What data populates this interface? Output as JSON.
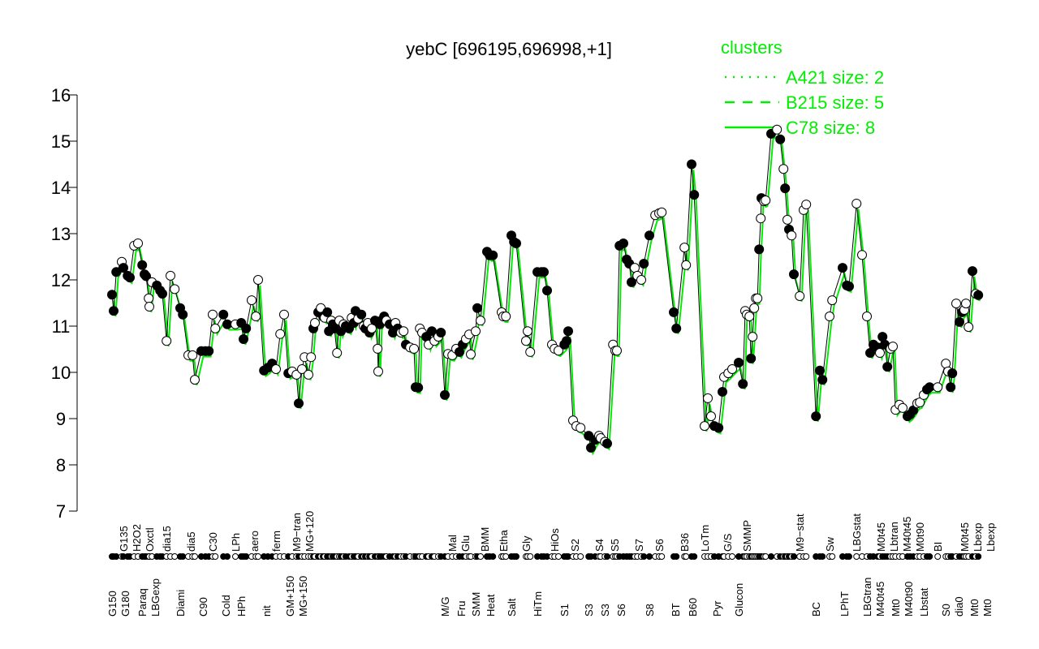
{
  "chart_data": {
    "type": "line",
    "title": "yebC [696195,696998,+1]",
    "xlabel": "",
    "ylabel": "",
    "ylim": [
      7,
      16
    ],
    "yticks": [
      7,
      8,
      9,
      10,
      11,
      12,
      13,
      14,
      15,
      16
    ],
    "xlim": [
      0,
      270
    ],
    "grid": false,
    "legend": {
      "title": "clusters",
      "placement": "top-right",
      "color": "#00ee00",
      "entries": [
        {
          "label": "A421 size: 2",
          "style": "dotted"
        },
        {
          "label": "B215 size: 5",
          "style": "dashed"
        },
        {
          "label": "C78 size: 8",
          "style": "solid"
        }
      ]
    },
    "colors": {
      "line": "#000000",
      "cluster": "#00ee00"
    },
    "points": [
      [
        2,
        11.68,
        1
      ],
      [
        2.5,
        11.33,
        1
      ],
      [
        3.3,
        12.17,
        1
      ],
      [
        5,
        12.39,
        0
      ],
      [
        5.5,
        12.26,
        1
      ],
      [
        6.8,
        12.09,
        1
      ],
      [
        7.5,
        12.05,
        1
      ],
      [
        8.8,
        12.74,
        0
      ],
      [
        10,
        12.79,
        0
      ],
      [
        11.3,
        12.32,
        1
      ],
      [
        12,
        12.12,
        1
      ],
      [
        12.5,
        12.08,
        1
      ],
      [
        13.3,
        11.6,
        0
      ],
      [
        13.5,
        11.42,
        0
      ],
      [
        14.3,
        11.95,
        0
      ],
      [
        15.8,
        11.88,
        1
      ],
      [
        16.8,
        11.77,
        1
      ],
      [
        17.5,
        11.7,
        1
      ],
      [
        18.8,
        10.68,
        0
      ],
      [
        20,
        12.09,
        0
      ],
      [
        21.3,
        11.8,
        0
      ],
      [
        23,
        11.39,
        1
      ],
      [
        23.8,
        11.25,
        1
      ],
      [
        25.5,
        10.37,
        0
      ],
      [
        26.8,
        10.37,
        0
      ],
      [
        27.5,
        9.84,
        0
      ],
      [
        29.5,
        10.46,
        1
      ],
      [
        30.8,
        10.46,
        1
      ],
      [
        31.8,
        10.46,
        1
      ],
      [
        33,
        11.25,
        0
      ],
      [
        33.8,
        10.95,
        0
      ],
      [
        36.3,
        11.25,
        1
      ],
      [
        37.5,
        11.04,
        1
      ],
      [
        40,
        11.04,
        0
      ],
      [
        41.8,
        11.07,
        1
      ],
      [
        42.5,
        10.72,
        1
      ],
      [
        43.3,
        10.95,
        1
      ],
      [
        45,
        11.56,
        0
      ],
      [
        46.3,
        11.21,
        0
      ],
      [
        47,
        12.0,
        0
      ],
      [
        48.8,
        10.04,
        1
      ],
      [
        50,
        10.1,
        1
      ],
      [
        51.3,
        10.19,
        1
      ],
      [
        52.5,
        10.07,
        0
      ],
      [
        53.8,
        10.83,
        0
      ],
      [
        55,
        11.25,
        0
      ],
      [
        56.3,
        9.98,
        1
      ],
      [
        57.5,
        10.02,
        0
      ],
      [
        58.8,
        9.95,
        0
      ],
      [
        59.5,
        9.33,
        1
      ],
      [
        60.5,
        10.07,
        0
      ],
      [
        61.3,
        10.33,
        0
      ],
      [
        62.5,
        9.95,
        0
      ],
      [
        63.3,
        10.33,
        0
      ],
      [
        64,
        10.95,
        1
      ],
      [
        64.5,
        11.07,
        0
      ],
      [
        65.5,
        11.3,
        1
      ],
      [
        66.3,
        11.39,
        0
      ],
      [
        67,
        11.21,
        1
      ],
      [
        67.5,
        11.18,
        0
      ],
      [
        68.3,
        11.3,
        1
      ],
      [
        68.8,
        10.89,
        1
      ],
      [
        69.5,
        11.12,
        0
      ],
      [
        70,
        11.04,
        1
      ],
      [
        70.5,
        10.95,
        1
      ],
      [
        71.3,
        10.42,
        0
      ],
      [
        72,
        11.12,
        0
      ],
      [
        72.5,
        10.89,
        1
      ],
      [
        73.3,
        11.04,
        0
      ],
      [
        74,
        11.0,
        1
      ],
      [
        75,
        10.95,
        1
      ],
      [
        75.8,
        11.18,
        0
      ],
      [
        76.5,
        11.07,
        1
      ],
      [
        77,
        11.33,
        1
      ],
      [
        77.8,
        11.16,
        0
      ],
      [
        78.8,
        11.25,
        1
      ],
      [
        79.5,
        11.0,
        0
      ],
      [
        80,
        10.95,
        1
      ],
      [
        80.8,
        11.07,
        0
      ],
      [
        81.3,
        10.86,
        1
      ],
      [
        82,
        10.95,
        0
      ],
      [
        83,
        11.12,
        1
      ],
      [
        83.8,
        10.51,
        0
      ],
      [
        84,
        10.02,
        0
      ],
      [
        84.5,
        11.04,
        1
      ],
      [
        85,
        11.12,
        1
      ],
      [
        85.8,
        11.21,
        1
      ],
      [
        86.5,
        11.12,
        0
      ],
      [
        87.5,
        11.04,
        1
      ],
      [
        88.5,
        10.86,
        1
      ],
      [
        89.3,
        11.07,
        0
      ],
      [
        90,
        10.95,
        1
      ],
      [
        91,
        10.86,
        0
      ],
      [
        91.8,
        10.89,
        0
      ],
      [
        92.5,
        10.6,
        1
      ],
      [
        93.8,
        10.54,
        0
      ],
      [
        95,
        10.51,
        0
      ],
      [
        95.5,
        9.68,
        1
      ],
      [
        96.3,
        9.67,
        1
      ],
      [
        96.8,
        10.95,
        0
      ],
      [
        97.5,
        10.86,
        0
      ],
      [
        98.8,
        10.77,
        1
      ],
      [
        99.5,
        10.6,
        0
      ],
      [
        100.5,
        10.89,
        1
      ],
      [
        101.3,
        10.68,
        0
      ],
      [
        102.5,
        10.77,
        0
      ],
      [
        103.3,
        10.86,
        1
      ],
      [
        104.5,
        9.51,
        1
      ],
      [
        105.5,
        10.4,
        0
      ],
      [
        106.8,
        10.37,
        0
      ],
      [
        108,
        10.51,
        0
      ],
      [
        109,
        10.44,
        1
      ],
      [
        110,
        10.6,
        1
      ],
      [
        111,
        10.72,
        0
      ],
      [
        112,
        10.82,
        0
      ],
      [
        112.5,
        10.39,
        0
      ],
      [
        114,
        10.89,
        0
      ],
      [
        114.5,
        11.39,
        1
      ],
      [
        115.5,
        11.12,
        0
      ],
      [
        117.5,
        12.61,
        1
      ],
      [
        118.3,
        12.53,
        1
      ],
      [
        119.3,
        12.53,
        1
      ],
      [
        122,
        11.3,
        0
      ],
      [
        122.5,
        11.21,
        0
      ],
      [
        123.3,
        11.21,
        0
      ],
      [
        125,
        12.96,
        1
      ],
      [
        125.8,
        12.82,
        1
      ],
      [
        126.5,
        12.79,
        1
      ],
      [
        129.5,
        10.68,
        0
      ],
      [
        130,
        10.89,
        0
      ],
      [
        130.8,
        10.44,
        0
      ],
      [
        133,
        12.17,
        1
      ],
      [
        134.3,
        12.17,
        1
      ],
      [
        135,
        12.17,
        1
      ],
      [
        136,
        11.77,
        1
      ],
      [
        137.5,
        10.6,
        0
      ],
      [
        138.3,
        10.51,
        0
      ],
      [
        139.5,
        10.47,
        0
      ],
      [
        141.3,
        10.6,
        1
      ],
      [
        142,
        10.68,
        1
      ],
      [
        142.5,
        10.89,
        1
      ],
      [
        144,
        8.96,
        0
      ],
      [
        145,
        8.84,
        0
      ],
      [
        146.3,
        8.8,
        0
      ],
      [
        148.8,
        8.63,
        1
      ],
      [
        149.5,
        8.37,
        1
      ],
      [
        150.8,
        8.54,
        1
      ],
      [
        152,
        8.63,
        0
      ],
      [
        152.5,
        8.58,
        0
      ],
      [
        153.8,
        8.5,
        0
      ],
      [
        154.5,
        8.46,
        1
      ],
      [
        156.3,
        10.6,
        0
      ],
      [
        157,
        10.47,
        0
      ],
      [
        157.5,
        10.47,
        0
      ],
      [
        158.3,
        12.74,
        1
      ],
      [
        159.5,
        12.79,
        1
      ],
      [
        160.5,
        12.44,
        1
      ],
      [
        161.3,
        12.35,
        1
      ],
      [
        162,
        11.95,
        1
      ],
      [
        163,
        12.26,
        0
      ],
      [
        163.8,
        12.09,
        0
      ],
      [
        165,
        12.0,
        0
      ],
      [
        165.8,
        12.35,
        1
      ],
      [
        167.5,
        12.96,
        1
      ],
      [
        169.3,
        13.4,
        0
      ],
      [
        170.5,
        13.44,
        0
      ],
      [
        171.3,
        13.46,
        0
      ],
      [
        175,
        11.3,
        1
      ],
      [
        175.8,
        10.95,
        1
      ],
      [
        178.3,
        12.7,
        0
      ],
      [
        178.8,
        12.32,
        0
      ],
      [
        180.5,
        14.5,
        1
      ],
      [
        181.3,
        13.84,
        1
      ],
      [
        184.5,
        8.84,
        0
      ],
      [
        185.5,
        9.44,
        0
      ],
      [
        186.5,
        9.05,
        0
      ],
      [
        187.5,
        8.84,
        1
      ],
      [
        188.8,
        8.8,
        1
      ],
      [
        190,
        9.58,
        1
      ],
      [
        190.5,
        9.9,
        0
      ],
      [
        191.8,
        9.98,
        0
      ],
      [
        193,
        10.07,
        0
      ],
      [
        195,
        10.21,
        1
      ],
      [
        196.3,
        9.75,
        1
      ],
      [
        197,
        11.33,
        0
      ],
      [
        197.5,
        11.25,
        0
      ],
      [
        198.3,
        11.21,
        0
      ],
      [
        198.8,
        10.3,
        1
      ],
      [
        199.3,
        10.77,
        0
      ],
      [
        199.8,
        11.39,
        0
      ],
      [
        200.3,
        11.6,
        0
      ],
      [
        200.8,
        11.6,
        0
      ],
      [
        201.3,
        12.66,
        1
      ],
      [
        201.8,
        13.33,
        0
      ],
      [
        202,
        13.77,
        1
      ],
      [
        202.8,
        13.7,
        0
      ],
      [
        203.3,
        13.72,
        0
      ],
      [
        205,
        15.16,
        1
      ],
      [
        206.8,
        15.25,
        0
      ],
      [
        207.8,
        15.04,
        1
      ],
      [
        208.8,
        14.4,
        0
      ],
      [
        209.3,
        13.98,
        1
      ],
      [
        210,
        13.3,
        0
      ],
      [
        210.5,
        13.09,
        1
      ],
      [
        211.3,
        12.96,
        0
      ],
      [
        212,
        12.12,
        1
      ],
      [
        213.8,
        11.65,
        0
      ],
      [
        215,
        13.51,
        0
      ],
      [
        215.8,
        13.63,
        0
      ],
      [
        218.8,
        9.05,
        1
      ],
      [
        220,
        10.04,
        1
      ],
      [
        220.8,
        9.84,
        1
      ],
      [
        223,
        11.21,
        0
      ],
      [
        223.8,
        11.56,
        0
      ],
      [
        227,
        12.26,
        1
      ],
      [
        228.3,
        11.88,
        1
      ],
      [
        229,
        11.86,
        1
      ],
      [
        231.3,
        13.65,
        0
      ],
      [
        233,
        12.54,
        0
      ],
      [
        234.5,
        11.21,
        0
      ],
      [
        235.5,
        10.42,
        1
      ],
      [
        236.5,
        10.6,
        1
      ],
      [
        237.8,
        10.54,
        1
      ],
      [
        238.5,
        10.42,
        0
      ],
      [
        239.3,
        10.77,
        1
      ],
      [
        240,
        10.6,
        1
      ],
      [
        240.8,
        10.12,
        1
      ],
      [
        241.8,
        10.51,
        0
      ],
      [
        242.5,
        10.56,
        0
      ],
      [
        243.3,
        9.19,
        0
      ],
      [
        244.5,
        9.3,
        0
      ],
      [
        245.5,
        9.23,
        0
      ],
      [
        247,
        9.05,
        1
      ],
      [
        247.8,
        9.09,
        1
      ],
      [
        248.8,
        9.18,
        1
      ],
      [
        250,
        9.33,
        0
      ],
      [
        250.8,
        9.35,
        0
      ],
      [
        252,
        9.51,
        0
      ],
      [
        253,
        9.63,
        1
      ],
      [
        253.8,
        9.68,
        1
      ],
      [
        256.3,
        9.68,
        0
      ],
      [
        258.8,
        10.19,
        0
      ],
      [
        259.5,
        10.02,
        0
      ],
      [
        260.3,
        9.68,
        1
      ],
      [
        260.8,
        9.98,
        1
      ],
      [
        262,
        11.49,
        0
      ],
      [
        263,
        11.09,
        1
      ],
      [
        263.8,
        11.3,
        1
      ],
      [
        264.5,
        11.35,
        0
      ],
      [
        265,
        11.49,
        0
      ],
      [
        265.8,
        10.98,
        0
      ],
      [
        267,
        12.19,
        1
      ],
      [
        268,
        11.7,
        0
      ],
      [
        268.8,
        11.67,
        1
      ]
    ],
    "xtick_labels_top": [
      [
        5.5,
        "G135"
      ],
      [
        9.3,
        "H2O2"
      ],
      [
        13.3,
        "Oxctl"
      ],
      [
        18.8,
        "dia15"
      ],
      [
        26.3,
        "dia5"
      ],
      [
        33,
        "C30"
      ],
      [
        40,
        "LPh"
      ],
      [
        45.8,
        "aero"
      ],
      [
        52.5,
        "ferm"
      ],
      [
        58.8,
        "M9−tran"
      ],
      [
        62,
        "MG+120"
      ],
      [
        106.8,
        "Mal"
      ],
      [
        110.8,
        "Glu"
      ],
      [
        116.8,
        "BMM"
      ],
      [
        122.5,
        "Etha"
      ],
      [
        129.5,
        "Gly"
      ],
      [
        138.3,
        "HiOs"
      ],
      [
        144.5,
        "S2"
      ],
      [
        152,
        "S4"
      ],
      [
        156.8,
        "S5"
      ],
      [
        164.3,
        "S7"
      ],
      [
        170.5,
        "S6"
      ],
      [
        178.3,
        "B36"
      ],
      [
        184.5,
        "LoTm"
      ],
      [
        191.5,
        "G/S"
      ],
      [
        197.5,
        "SMMP"
      ],
      [
        213.8,
        "M9−stat"
      ],
      [
        223,
        "Sw"
      ],
      [
        231.3,
        "LBGstat"
      ],
      [
        238.8,
        "M0t45"
      ],
      [
        241.8,
        "Lbtran"
      ],
      [
        243.8,
        "M40t45"
      ],
      [
        250,
        "M0t90"
      ],
      [
        256.3,
        "BI"
      ],
      [
        264.5,
        "M0t45"
      ],
      [
        267,
        "Lbexp"
      ],
      [
        268.3,
        "Lbexp"
      ]
    ],
    "xtick_labels_bottom": [
      [
        2,
        "G150"
      ],
      [
        5.5,
        "G180"
      ],
      [
        11.3,
        "Paraq"
      ],
      [
        15,
        "LBGexp"
      ],
      [
        23,
        "Diami"
      ],
      [
        30,
        "C90"
      ],
      [
        37,
        "Cold"
      ],
      [
        41.8,
        "HPh"
      ],
      [
        49.5,
        "nit"
      ],
      [
        56.8,
        "GM+150"
      ],
      [
        60,
        "MG+150"
      ],
      [
        104.5,
        "M/G"
      ],
      [
        109.5,
        "Fru"
      ],
      [
        114,
        "SMM"
      ],
      [
        118.5,
        "Heat"
      ],
      [
        125,
        "Salt"
      ],
      [
        133,
        "HiTm"
      ],
      [
        141.3,
        "S1"
      ],
      [
        148.8,
        "S3"
      ],
      [
        153.8,
        "S3"
      ],
      [
        158.8,
        "S6"
      ],
      [
        167.5,
        "S8"
      ],
      [
        175.5,
        "BT"
      ],
      [
        180.8,
        "B60"
      ],
      [
        188.3,
        "Pyr"
      ],
      [
        195,
        "Glucon"
      ],
      [
        218.8,
        "BC"
      ],
      [
        227.5,
        "LPhT"
      ],
      [
        234.5,
        "LBGtran"
      ],
      [
        237.5,
        "M40t45"
      ],
      [
        243.3,
        "Mt0"
      ],
      [
        246.3,
        "M40t90"
      ],
      [
        252,
        "Lbstat"
      ],
      [
        258.8,
        "S0"
      ],
      [
        262,
        "dia0"
      ],
      [
        267.5,
        "Mt0"
      ],
      [
        268.3,
        "Mt0"
      ]
    ]
  }
}
